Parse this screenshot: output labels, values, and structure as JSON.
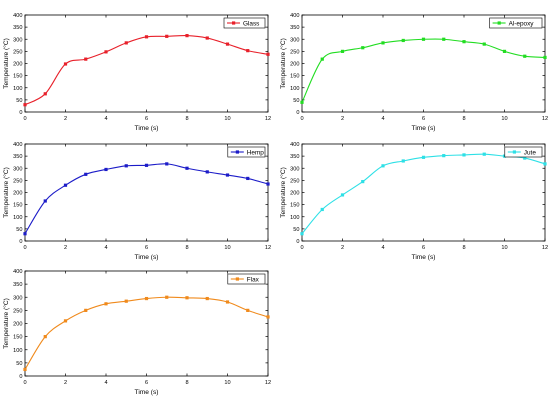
{
  "chart_data": [
    {
      "type": "line",
      "xlabel": "Time (s)",
      "ylabel": "Temperature (°C)",
      "xlim": [
        0,
        12
      ],
      "ylim": [
        0,
        400
      ],
      "xticks": [
        0,
        2,
        4,
        6,
        8,
        10,
        12
      ],
      "yticks": [
        0,
        50,
        100,
        150,
        200,
        250,
        300,
        350,
        400
      ],
      "grid": false,
      "legend_position": "top-right",
      "series": [
        {
          "name": "Glass",
          "color": "#e8202a",
          "marker": "square",
          "x": [
            0,
            1,
            2,
            3,
            4,
            5,
            6,
            7,
            8,
            9,
            10,
            11,
            12
          ],
          "y": [
            30,
            75,
            198,
            218,
            248,
            285,
            310,
            312,
            315,
            305,
            280,
            253,
            238
          ]
        }
      ]
    },
    {
      "type": "line",
      "xlabel": "Time (s)",
      "ylabel": "Temperature (°C)",
      "xlim": [
        0,
        12
      ],
      "ylim": [
        0,
        400
      ],
      "xticks": [
        0,
        2,
        4,
        6,
        8,
        10,
        12
      ],
      "yticks": [
        0,
        50,
        100,
        150,
        200,
        250,
        300,
        350,
        400
      ],
      "grid": false,
      "legend_position": "top-right",
      "series": [
        {
          "name": "Al-epoxy",
          "color": "#22dd22",
          "marker": "square",
          "x": [
            0,
            1,
            2,
            3,
            4,
            5,
            6,
            7,
            8,
            9,
            10,
            11,
            12
          ],
          "y": [
            40,
            218,
            250,
            265,
            285,
            295,
            300,
            300,
            290,
            280,
            250,
            230,
            225
          ]
        }
      ]
    },
    {
      "type": "line",
      "xlabel": "Time (s)",
      "ylabel": "Temperature (°C)",
      "xlim": [
        0,
        12
      ],
      "ylim": [
        0,
        400
      ],
      "xticks": [
        0,
        2,
        4,
        6,
        8,
        10,
        12
      ],
      "yticks": [
        0,
        50,
        100,
        150,
        200,
        250,
        300,
        350,
        400
      ],
      "grid": false,
      "legend_position": "top-right",
      "series": [
        {
          "name": "Hemp",
          "color": "#1c1cc8",
          "marker": "square",
          "x": [
            0,
            1,
            2,
            3,
            4,
            5,
            6,
            7,
            8,
            9,
            10,
            11,
            12
          ],
          "y": [
            30,
            165,
            230,
            275,
            295,
            310,
            312,
            318,
            300,
            285,
            272,
            258,
            235
          ]
        }
      ]
    },
    {
      "type": "line",
      "xlabel": "Time (s)",
      "ylabel": "Temperature (°C)",
      "xlim": [
        0,
        12
      ],
      "ylim": [
        0,
        400
      ],
      "xticks": [
        0,
        2,
        4,
        6,
        8,
        10,
        12
      ],
      "yticks": [
        0,
        50,
        100,
        150,
        200,
        250,
        300,
        350,
        400
      ],
      "grid": false,
      "legend_position": "top-right",
      "series": [
        {
          "name": "Jute",
          "color": "#2ee0e6",
          "marker": "square",
          "x": [
            0,
            1,
            2,
            3,
            4,
            5,
            6,
            7,
            8,
            9,
            10,
            11,
            12
          ],
          "y": [
            30,
            130,
            190,
            245,
            310,
            330,
            345,
            352,
            355,
            358,
            350,
            342,
            318
          ]
        }
      ]
    },
    {
      "type": "line",
      "xlabel": "Time (s)",
      "ylabel": "Temperature (°C)",
      "xlim": [
        0,
        12
      ],
      "ylim": [
        0,
        400
      ],
      "xticks": [
        0,
        2,
        4,
        6,
        8,
        10,
        12
      ],
      "yticks": [
        0,
        50,
        100,
        150,
        200,
        250,
        300,
        350,
        400
      ],
      "grid": false,
      "legend_position": "top-right",
      "series": [
        {
          "name": "Flax",
          "color": "#f08a1c",
          "marker": "square",
          "x": [
            0,
            1,
            2,
            3,
            4,
            5,
            6,
            7,
            8,
            9,
            10,
            11,
            12
          ],
          "y": [
            25,
            150,
            210,
            250,
            275,
            285,
            295,
            300,
            298,
            295,
            282,
            250,
            225
          ]
        }
      ]
    }
  ]
}
